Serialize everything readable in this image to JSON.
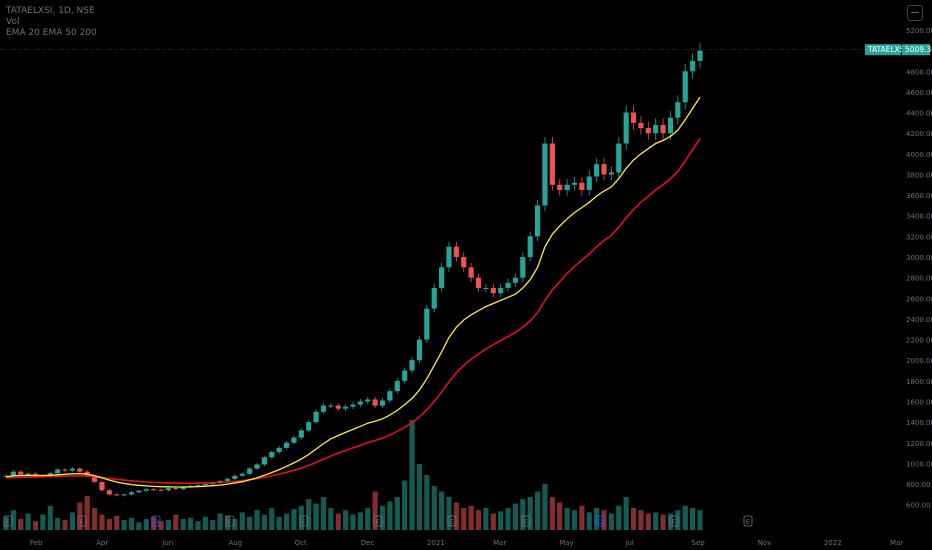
{
  "legend": {
    "symbol": "TATAELXSI, 1D, NSE",
    "vol": "Vol",
    "ema": "EMA 20 EMA 50 200"
  },
  "price_tag": {
    "symbol": "TATAELXSI",
    "price": "5009.30"
  },
  "colors": {
    "background": "#000000",
    "ema_fast": "#ffeb3b",
    "ema_slow": "#e3111a",
    "candle_up": "#26a69a",
    "candle_down": "#ef5350",
    "tag_bg": "#26a69a",
    "axis_text": "#6f7380"
  },
  "chart_data": {
    "type": "candlestick",
    "title": "TATAELXSI, 1D, NSE",
    "ylim": [
      500,
      5200
    ],
    "y_ticks": [
      600,
      800,
      1000,
      1200,
      1400,
      1600,
      1800,
      2000,
      2200,
      2400,
      2600,
      2800,
      3000,
      3200,
      3400,
      3600,
      3800,
      4000,
      4200,
      4400,
      4600,
      4800,
      5200
    ],
    "x_ticks": [
      "Feb",
      "Apr",
      "Jun",
      "Aug",
      "Oct",
      "Dec",
      "2021",
      "Mar",
      "May",
      "Jul",
      "Sep",
      "Nov",
      "2022",
      "Mar"
    ],
    "last_price": 5009.3,
    "event_markers": [
      "E",
      "E",
      "D",
      "E",
      "E",
      "E",
      "E",
      "E",
      "D",
      "E",
      "E"
    ],
    "close": [
      880,
      920,
      890,
      900,
      870,
      880,
      905,
      940,
      930,
      950,
      920,
      880,
      820,
      740,
      700,
      690,
      700,
      720,
      735,
      750,
      745,
      740,
      760,
      750,
      770,
      780,
      790,
      800,
      810,
      830,
      850,
      880,
      900,
      950,
      990,
      1060,
      1110,
      1150,
      1200,
      1250,
      1320,
      1400,
      1500,
      1560,
      1560,
      1530,
      1550,
      1570,
      1600,
      1620,
      1560,
      1610,
      1700,
      1800,
      1900,
      2000,
      2200,
      2500,
      2700,
      2900,
      3100,
      3000,
      2900,
      2800,
      2700,
      2700,
      2650,
      2700,
      2750,
      2800,
      3000,
      3200,
      3500,
      4100,
      3700,
      3650,
      3700,
      3720,
      3650,
      3780,
      3900,
      3800,
      3820,
      4100,
      4400,
      4300,
      4250,
      4200,
      4280,
      4200,
      4350,
      4500,
      4800,
      4900,
      5000
    ],
    "ema_fast": [
      870,
      880,
      882,
      885,
      883,
      883,
      885,
      890,
      894,
      899,
      901,
      895,
      880,
      860,
      838,
      820,
      805,
      795,
      788,
      782,
      777,
      774,
      773,
      771,
      771,
      773,
      775,
      779,
      784,
      790,
      799,
      810,
      823,
      840,
      860,
      885,
      912,
      940,
      972,
      1005,
      1043,
      1087,
      1140,
      1192,
      1238,
      1270,
      1300,
      1330,
      1360,
      1390,
      1408,
      1432,
      1468,
      1514,
      1570,
      1630,
      1710,
      1820,
      1950,
      2080,
      2220,
      2320,
      2390,
      2440,
      2480,
      2520,
      2550,
      2580,
      2610,
      2640,
      2700,
      2780,
      2900,
      3100,
      3220,
      3300,
      3370,
      3430,
      3480,
      3530,
      3590,
      3640,
      3680,
      3760,
      3860,
      3940,
      4000,
      4050,
      4100,
      4130,
      4170,
      4230,
      4330,
      4440,
      4550
    ],
    "ema_slow": [
      860,
      862,
      864,
      866,
      868,
      870,
      872,
      874,
      876,
      878,
      879,
      877,
      872,
      864,
      855,
      846,
      838,
      831,
      825,
      820,
      816,
      813,
      811,
      809,
      808,
      808,
      809,
      811,
      813,
      816,
      820,
      826,
      832,
      842,
      853,
      866,
      880,
      896,
      914,
      933,
      955,
      980,
      1010,
      1042,
      1072,
      1100,
      1125,
      1150,
      1176,
      1202,
      1222,
      1245,
      1275,
      1310,
      1350,
      1395,
      1450,
      1520,
      1600,
      1690,
      1790,
      1880,
      1950,
      2010,
      2060,
      2110,
      2150,
      2190,
      2230,
      2270,
      2320,
      2380,
      2460,
      2580,
      2680,
      2760,
      2840,
      2910,
      2970,
      3030,
      3100,
      3160,
      3210,
      3290,
      3380,
      3460,
      3530,
      3590,
      3650,
      3700,
      3760,
      3830,
      3930,
      4040,
      4150
    ],
    "volume": [
      0.12,
      0.18,
      0.1,
      0.15,
      0.08,
      0.14,
      0.22,
      0.11,
      0.09,
      0.16,
      0.25,
      0.31,
      0.2,
      0.14,
      0.1,
      0.13,
      0.09,
      0.11,
      0.07,
      0.1,
      0.12,
      0.08,
      0.09,
      0.14,
      0.1,
      0.11,
      0.08,
      0.12,
      0.09,
      0.15,
      0.13,
      0.1,
      0.16,
      0.12,
      0.18,
      0.14,
      0.2,
      0.12,
      0.15,
      0.19,
      0.22,
      0.28,
      0.24,
      0.3,
      0.2,
      0.15,
      0.18,
      0.14,
      0.16,
      0.2,
      0.35,
      0.22,
      0.26,
      0.3,
      0.45,
      1.0,
      0.6,
      0.5,
      0.4,
      0.35,
      0.3,
      0.25,
      0.2,
      0.22,
      0.18,
      0.2,
      0.15,
      0.17,
      0.2,
      0.24,
      0.28,
      0.3,
      0.35,
      0.42,
      0.3,
      0.25,
      0.2,
      0.18,
      0.22,
      0.16,
      0.2,
      0.18,
      0.15,
      0.22,
      0.3,
      0.2,
      0.18,
      0.15,
      0.16,
      0.14,
      0.15,
      0.18,
      0.22,
      0.2,
      0.18
    ]
  }
}
